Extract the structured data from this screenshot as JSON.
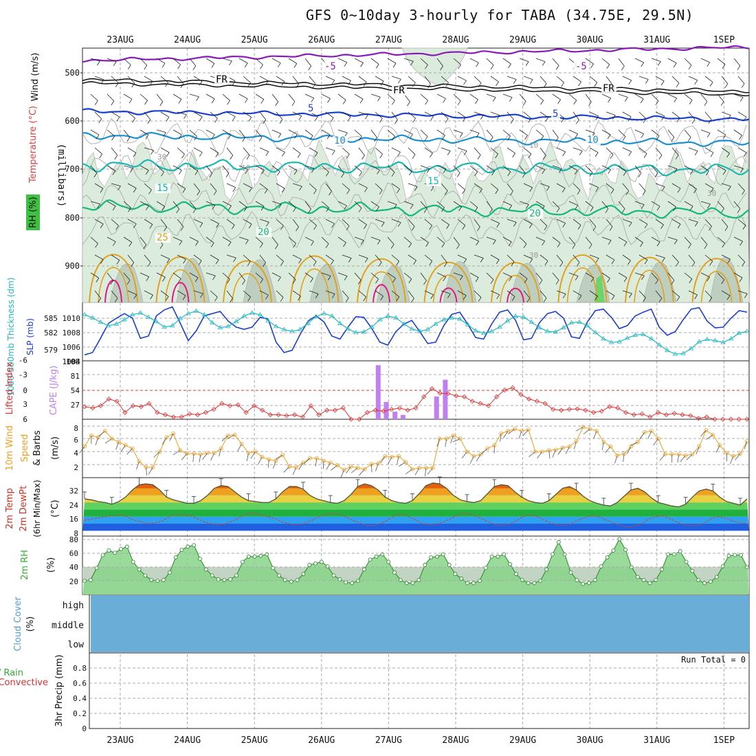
{
  "title": "GFS 0~10day 3-hourly for TABA (34.75E, 29.5N)",
  "date_labels": [
    "23AUG",
    "24AUG",
    "25AUG",
    "26AUG",
    "27AUG",
    "28AUG",
    "29AUG",
    "30AUG",
    "31AUG",
    "1SEP"
  ],
  "colors": {
    "temp_contour": [
      "#8a1ab8",
      "#1a3fd0",
      "#1a90d0",
      "#1ab8b0",
      "#14b878",
      "#e0a020",
      "#e01880"
    ],
    "freezing": "#000000",
    "rh_fill": "#dcecdc",
    "thickness": "#20b8c0",
    "slp": "#1a3fd0",
    "lifted_index": "#e03030",
    "cape": "#c080f0",
    "wind_speed": "#f0a020",
    "rh2m": "#30b030",
    "cloud": "#6aaed8",
    "grid": "#aaaaaa"
  },
  "panels": {
    "upper": {
      "ylabel_wind": "Wind (m/s)",
      "ylabel_temp": "Temperature (°C)",
      "ylabel_rh": "RH (%)",
      "ylabel_mb": "(millibars)",
      "yticks": [
        "500",
        "600",
        "700",
        "800",
        "900"
      ],
      "contour_labels": [
        "-5",
        "-5",
        "FR",
        "FR",
        "FR",
        "5",
        "5",
        "10",
        "10",
        "15",
        "15",
        "20",
        "20",
        "25",
        "30",
        "30",
        "30",
        "10",
        "10"
      ]
    },
    "slp": {
      "ylabel_thick": "1000-500mb Thickness (dm)",
      "ylabel_slp": "SLP (mb)",
      "yticks_left": [
        "585",
        "582",
        "579"
      ],
      "yticks_right": [
        "1010",
        "1008",
        "1006",
        "1004"
      ]
    },
    "cape": {
      "ylabel_li": "Lifted Index",
      "ylabel_cape": "CAPE (J/kg)",
      "yticks_left": [
        "-6",
        "-3",
        "0",
        "3",
        "6"
      ],
      "yticks_right": [
        "108",
        "81",
        "54",
        "27"
      ]
    },
    "wind10": {
      "ylabel_a": "10m Wind",
      "ylabel_b": "Speed",
      "ylabel_c": "& Barbs",
      "ylabel_unit": "(m/s)",
      "yticks": [
        "8",
        "6",
        "4",
        "2"
      ]
    },
    "temp2m": {
      "ylabel_a": "2m Temp",
      "ylabel_b": "2m DewPt",
      "ylabel_c": "(6hr Min/Max)",
      "ylabel_unit": "(°C)",
      "yticks": [
        "32",
        "24",
        "16",
        "8"
      ]
    },
    "rh2m": {
      "ylabel": "2m RH",
      "ylabel_unit": "(%)",
      "yticks": [
        "80",
        "60",
        "40",
        "20"
      ]
    },
    "cloud": {
      "ylabel": "Cloud Cover",
      "ylabel_unit": "(%)",
      "levels": [
        "high",
        "middle",
        "low"
      ]
    },
    "precip": {
      "ylabel_a": "Total / Rain",
      "ylabel_b": "Convective",
      "ylabel_c": "3hr Precip (mm)",
      "yticks": [
        "0.8",
        "0.6",
        "0.4",
        "0.2",
        "0"
      ],
      "run_total": "Run Total = 0"
    }
  },
  "chart_data": [
    {
      "type": "line",
      "title": "1000-500mb Thickness (dm) / SLP (mb)",
      "x_unit": "3-hour steps from 22 Aug 12Z",
      "series": [
        {
          "name": "SLP (mb)",
          "values": [
            1004.3,
            1004.6,
            1006.5,
            1008.5,
            1009.2,
            1009.8,
            1009.2,
            1006.5,
            1006.8,
            1009.5,
            1010.3,
            1010.7,
            1008.5,
            1006.2,
            1007.5,
            1009.5,
            1009.8,
            1010.1,
            1008.8,
            1008.0,
            1007.7,
            1008.0,
            1009.3,
            1009.1,
            1006.0,
            1004.6,
            1004.9,
            1007.0,
            1008.8,
            1009.5,
            1008.7,
            1006.8,
            1006.4,
            1008.0,
            1009.4,
            1009.3,
            1007.8,
            1006.0,
            1005.6,
            1007.4,
            1008.4,
            1008.9,
            1007.4,
            1005.8,
            1006.0,
            1008.2,
            1009.7,
            1010.0,
            1008.4,
            1006.6,
            1006.4,
            1008.4,
            1010.0,
            1010.3,
            1008.9,
            1006.3,
            1006.5,
            1008.6,
            1009.8,
            1010.1,
            1009.2,
            1006.7,
            1006.5,
            1008.7,
            1010.2,
            1010.4,
            1009.3,
            1007.8,
            1008.2,
            1009.5,
            1010.0,
            1010.4,
            1008.0,
            1006.9,
            1007.4,
            1009.0,
            1010.4,
            1010.6,
            1008.8,
            1007.9,
            1008.0,
            1009.2,
            1010.2,
            1010.0
          ]
        },
        {
          "name": "1000-500mb Thickness (dm)",
          "values": [
            585.0,
            584.5,
            583.8,
            583.2,
            583.5,
            584.2,
            585.0,
            585.3,
            584.6,
            583.9,
            583.0,
            583.2,
            584.4,
            585.2,
            585.6,
            585.0,
            583.7,
            582.9,
            583.1,
            583.9,
            584.8,
            585.3,
            585.0,
            584.0,
            583.1,
            582.6,
            582.3,
            582.6,
            583.6,
            584.7,
            585.2,
            584.8,
            583.6,
            582.7,
            582.1,
            582.2,
            583.0,
            584.2,
            584.8,
            584.5,
            583.5,
            582.7,
            582.3,
            582.6,
            583.5,
            584.2,
            584.5,
            584.3,
            583.4,
            582.4,
            582.0,
            582.3,
            583.0,
            584.0,
            584.8,
            584.6,
            583.8,
            582.9,
            582.3,
            582.2,
            582.9,
            583.7,
            583.8,
            583.2,
            582.1,
            581.1,
            580.5,
            580.6,
            581.2,
            581.7,
            581.8,
            581.1,
            580.1,
            579.2,
            578.6,
            578.7,
            579.5,
            580.6,
            581.0,
            580.8,
            580.5,
            581.1,
            582.0,
            582.3
          ]
        }
      ],
      "ylim_left": [
        577.5,
        587
      ],
      "ylim_right": [
        1003.5,
        1011.3
      ]
    },
    {
      "type": "bar",
      "title": "Lifted Index / CAPE (J/kg)",
      "bars": [
        {
          "x_day": 26.85,
          "cape": 100
        },
        {
          "x_day": 26.97,
          "cape": 32
        },
        {
          "x_day": 27.1,
          "cape": 14
        },
        {
          "x_day": 27.22,
          "cape": 8
        },
        {
          "x_day": 27.72,
          "cape": 42
        },
        {
          "x_day": 27.85,
          "cape": 73
        }
      ],
      "lifted_index": [
        3.2,
        3.5,
        3.0,
        1.5,
        2.0,
        4.5,
        3.0,
        3.2,
        2.5,
        4.5,
        5.0,
        5.5,
        5.5,
        4.8,
        5.0,
        4.5,
        3.8,
        2.5,
        3.0,
        2.8,
        4.5,
        3.0,
        4.0,
        5.0,
        5.0,
        5.2,
        5.0,
        5.5,
        3.0,
        5.0,
        4.0,
        4.0,
        3.5,
        6.0,
        6.0,
        4.5,
        4.0,
        4.2,
        3.8,
        3.5,
        4.0,
        3.5,
        1.0,
        -0.8,
        0.2,
        0.3,
        0.8,
        1.0,
        2.0,
        2.5,
        3.0,
        1.0,
        -0.5,
        -1.0,
        0.5,
        1.5,
        2.0,
        2.5,
        3.8,
        4.0,
        3.8,
        3.7,
        4.0,
        4.5,
        4.2,
        3.2,
        3.5,
        4.5,
        5.0,
        4.8,
        5.5,
        4.5,
        5.0,
        4.7,
        5.0,
        5.2,
        5.8,
        5.5,
        6.0,
        6.0,
        6.2,
        6.2,
        6.3
      ],
      "ylim_li": [
        6,
        -7
      ],
      "ylim_cape": [
        0,
        108
      ]
    },
    {
      "type": "line",
      "title": "10m Wind Speed (m/s)",
      "values": [
        4.8,
        6.5,
        6.2,
        7.2,
        6.0,
        5.5,
        5.0,
        4.5,
        2.5,
        1.6,
        1.6,
        4.0,
        6.2,
        6.8,
        4.2,
        3.7,
        3.7,
        3.6,
        3.8,
        3.8,
        4.5,
        6.5,
        6.6,
        5.2,
        3.8,
        4.0,
        3.2,
        2.8,
        2.6,
        3.5,
        1.7,
        1.6,
        2.3,
        3.0,
        3.0,
        2.6,
        2.3,
        1.9,
        1.2,
        1.7,
        1.5,
        1.3,
        2.1,
        2.2,
        3.3,
        3.2,
        3.3,
        2.4,
        1.3,
        1.5,
        1.5,
        1.5,
        6.0,
        6.0,
        6.5,
        6.0,
        4.0,
        3.3,
        3.6,
        4.5,
        5.0,
        6.8,
        7.2,
        7.5,
        7.2,
        7.4,
        4.0,
        4.0,
        4.2,
        4.3,
        4.6,
        4.8,
        5.6,
        7.8,
        7.5,
        7.2,
        5.5,
        4.8,
        3.4,
        3.7,
        4.8,
        5.5,
        7.0,
        7.2,
        6.0,
        3.6,
        3.6,
        3.6,
        3.4,
        3.6,
        4.8,
        7.3,
        6.6,
        5.0,
        3.8,
        3.3,
        3.7,
        5.6
      ],
      "ylim": [
        0,
        9
      ]
    },
    {
      "type": "area",
      "title": "2m Temp / 2m DewPt (°C)",
      "temp": [
        26,
        25.5,
        24.5,
        24,
        23,
        24.5,
        27,
        31,
        34,
        34.5,
        34,
        31,
        27,
        25.5,
        24.5,
        23.5,
        23.5,
        25,
        28,
        32,
        33.5,
        33,
        30,
        27,
        25,
        24.5,
        24,
        24,
        26,
        30,
        33,
        33,
        31.5,
        28,
        26,
        25,
        24,
        23.5,
        25,
        28.5,
        33,
        34.5,
        33.5,
        31,
        27,
        25,
        24,
        23.5,
        25,
        29,
        33.5,
        35,
        34.5,
        32,
        28,
        25.5,
        24.5,
        24,
        25,
        29,
        33,
        34,
        33.5,
        30,
        27,
        25,
        24,
        23.5,
        25,
        28.5,
        32,
        33,
        31,
        27.5,
        25,
        23.5,
        22.5,
        22,
        24,
        27.5,
        31,
        32,
        30,
        26.5,
        24,
        23,
        22,
        21.5,
        23,
        27,
        30.5,
        31.5,
        30.5,
        27,
        24.5,
        23.5,
        22.5,
        26
      ],
      "dewpoint": [
        14,
        14.5,
        15.5,
        16,
        16.5,
        17,
        16,
        14,
        13,
        12,
        12.5,
        13.5,
        16,
        17.5,
        17,
        16.5,
        15,
        13,
        12,
        11.5,
        12,
        13.5,
        15.5,
        17.5,
        18,
        17,
        16,
        15,
        13,
        12,
        11.5,
        12,
        13.5,
        15.5,
        17,
        18,
        17.5,
        16,
        14,
        12.5,
        11,
        11,
        12,
        14,
        16.5,
        17.5,
        16,
        14,
        12,
        11.5,
        12,
        13,
        15,
        17,
        18,
        17,
        15.5,
        13.5,
        12,
        11,
        11.5,
        13,
        15.5,
        17,
        16.5,
        14.5,
        12.5,
        11.5,
        11,
        12,
        14,
        15.5,
        16.5,
        16,
        14,
        12.5,
        11,
        10,
        10.5,
        12,
        14.5,
        16,
        16.5,
        15,
        13,
        11.5,
        11,
        11,
        12.5,
        15,
        16,
        15,
        13.5,
        12.5,
        12
      ],
      "ylim": [
        5,
        38
      ]
    },
    {
      "type": "area",
      "title": "2m RH (%)",
      "values": [
        23,
        24,
        40,
        57,
        63,
        60,
        65,
        68,
        48,
        38,
        30,
        24,
        23,
        24,
        34,
        54,
        64,
        68,
        70,
        52,
        38,
        30,
        25,
        24,
        25,
        30,
        48,
        55,
        55,
        56,
        58,
        40,
        30,
        24,
        22,
        24,
        32,
        44,
        46,
        48,
        42,
        30,
        25,
        21,
        20,
        23,
        38,
        51,
        55,
        58,
        48,
        34,
        24,
        20,
        20,
        24,
        44,
        54,
        55,
        58,
        44,
        32,
        26,
        20,
        20,
        23,
        40,
        55,
        55,
        58,
        45,
        32,
        24,
        20,
        20,
        23,
        38,
        58,
        74,
        58,
        34,
        24,
        19,
        20,
        24,
        42,
        54,
        63,
        78,
        64,
        41,
        28,
        24,
        20,
        24,
        38,
        58,
        58,
        62,
        48,
        36,
        24,
        20,
        22,
        28,
        42,
        56,
        57,
        57,
        41
      ],
      "ylim": [
        5,
        82
      ]
    },
    {
      "type": "area",
      "title": "Cloud Cover (%)",
      "levels": [
        "high",
        "middle",
        "low"
      ],
      "values": [
        0,
        0,
        0
      ]
    },
    {
      "type": "bar",
      "title": "3hr Precip (mm)",
      "values": [
        0
      ],
      "ylim": [
        0,
        1
      ]
    }
  ]
}
